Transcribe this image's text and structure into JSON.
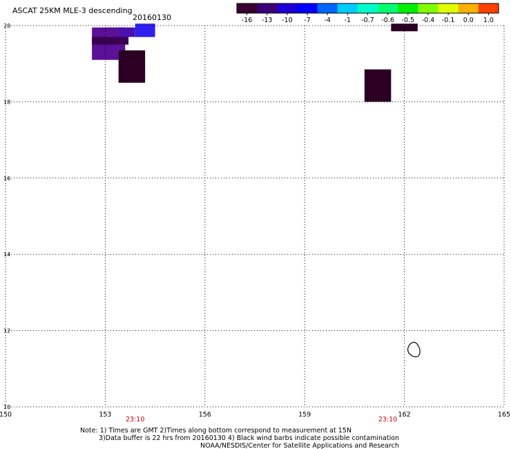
{
  "product_title": "ASCAT 25KM MLE-3 descending",
  "date_label": "20160130",
  "colorbar": {
    "labels": [
      "-16",
      "-13",
      "-10",
      "-7",
      "-4",
      "-1",
      "-0.7",
      "-0.6",
      "-0.5",
      "-0.4",
      "-0.1",
      "0.0",
      "1.0"
    ],
    "colors": [
      "#3a0030",
      "#3c0078",
      "#1e00d6",
      "#0000ff",
      "#0066ff",
      "#00ccff",
      "#00ffc8",
      "#00ff70",
      "#00f000",
      "#80ff00",
      "#e0ff00",
      "#ffb000",
      "#ff4000"
    ]
  },
  "map": {
    "lon_ticks": [
      "150",
      "153",
      "156",
      "159",
      "162",
      "165"
    ],
    "lat_ticks": [
      "20",
      "18",
      "16",
      "14",
      "12",
      "10"
    ],
    "lon_range": [
      150,
      165
    ],
    "lat_range": [
      10,
      20
    ],
    "time_labels": [
      {
        "text": "23:10",
        "lon": 153.9
      },
      {
        "text": "23:10",
        "lon": 161.5
      }
    ],
    "time_label_color": "#cc0000",
    "cells": [
      {
        "lon0": 152.6,
        "lon1": 153.4,
        "lat0": 19.1,
        "lat1": 19.95,
        "color": "#5b1098"
      },
      {
        "lon0": 153.4,
        "lon1": 153.6,
        "lat0": 19.1,
        "lat1": 19.95,
        "color": "#5b1098"
      },
      {
        "lon0": 152.6,
        "lon1": 153.4,
        "lat0": 19.5,
        "lat1": 19.7,
        "color": "#3a0050"
      },
      {
        "lon0": 153.4,
        "lon1": 153.7,
        "lat0": 19.5,
        "lat1": 19.7,
        "color": "#3a0050"
      },
      {
        "lon0": 153.0,
        "lon1": 153.4,
        "lat0": 19.7,
        "lat1": 19.95,
        "color": "#5b1098"
      },
      {
        "lon0": 153.4,
        "lon1": 153.9,
        "lat0": 19.7,
        "lat1": 19.95,
        "color": "#4a10b0"
      },
      {
        "lon0": 153.9,
        "lon1": 154.5,
        "lat0": 19.7,
        "lat1": 20.05,
        "color": "#2f20f0"
      },
      {
        "lon0": 153.4,
        "lon1": 154.2,
        "lat0": 18.5,
        "lat1": 19.35,
        "color": "#2c0024"
      },
      {
        "lon0": 160.8,
        "lon1": 161.6,
        "lat0": 18.0,
        "lat1": 18.85,
        "color": "#2c0024"
      },
      {
        "lon0": 161.6,
        "lon1": 162.4,
        "lat0": 19.85,
        "lat1": 20.05,
        "color": "#2c0024"
      }
    ],
    "grid_color": "#000000",
    "coast_color": "#000000"
  },
  "notes": {
    "line1": "Note: 1) Times are GMT 2)Times along bottom correspond to measurement at 15N",
    "line2": "3)Data buffer is 22 hrs from 20160130 4) Black wind barbs indicate possible contamination",
    "line3": "NOAA/NESDIS/Center for Satellite Applications and Research"
  }
}
